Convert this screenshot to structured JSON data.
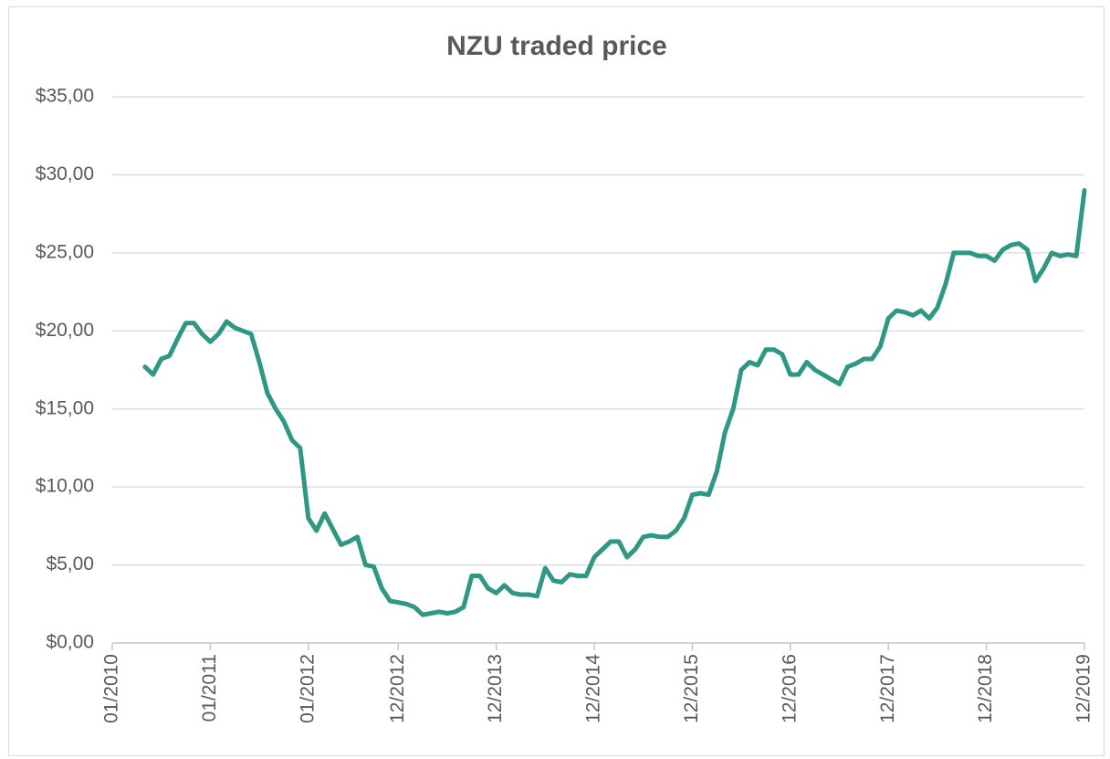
{
  "chart_data": {
    "type": "line",
    "title": "NZU traded price",
    "x": [
      "05/2010",
      "06/2010",
      "07/2010",
      "08/2010",
      "09/2010",
      "10/2010",
      "11/2010",
      "12/2010",
      "01/2011",
      "02/2011",
      "03/2011",
      "04/2011",
      "05/2011",
      "06/2011",
      "07/2011",
      "08/2011",
      "09/2011",
      "10/2011",
      "11/2011",
      "12/2011",
      "01/2012",
      "02/2012",
      "03/2012",
      "04/2012",
      "05/2012",
      "06/2012",
      "07/2012",
      "08/2012",
      "09/2012",
      "10/2012",
      "11/2012",
      "12/2012",
      "01/2013",
      "02/2013",
      "03/2013",
      "04/2013",
      "05/2013",
      "06/2013",
      "07/2013",
      "08/2013",
      "09/2013",
      "10/2013",
      "11/2013",
      "12/2013",
      "01/2014",
      "02/2014",
      "03/2014",
      "04/2014",
      "05/2014",
      "06/2014",
      "07/2014",
      "08/2014",
      "09/2014",
      "10/2014",
      "11/2014",
      "12/2014",
      "01/2015",
      "02/2015",
      "03/2015",
      "04/2015",
      "05/2015",
      "06/2015",
      "07/2015",
      "08/2015",
      "09/2015",
      "10/2015",
      "11/2015",
      "12/2015",
      "01/2016",
      "02/2016",
      "03/2016",
      "04/2016",
      "05/2016",
      "06/2016",
      "07/2016",
      "08/2016",
      "09/2016",
      "10/2016",
      "11/2016",
      "12/2016",
      "01/2017",
      "02/2017",
      "03/2017",
      "04/2017",
      "05/2017",
      "06/2017",
      "07/2017",
      "08/2017",
      "09/2017",
      "10/2017",
      "11/2017",
      "12/2017",
      "01/2018",
      "02/2018",
      "03/2018",
      "04/2018",
      "05/2018",
      "06/2018",
      "07/2018",
      "08/2018",
      "09/2018",
      "10/2018",
      "11/2018",
      "12/2018",
      "01/2019",
      "02/2019",
      "03/2019",
      "04/2019",
      "05/2019",
      "06/2019",
      "07/2019",
      "08/2019",
      "09/2019",
      "10/2019",
      "11/2019",
      "12/2019"
    ],
    "values": [
      17.7,
      17.2,
      18.2,
      18.4,
      19.5,
      20.5,
      20.5,
      19.8,
      19.3,
      19.8,
      20.6,
      20.2,
      20.0,
      19.8,
      18.0,
      16.0,
      15.0,
      14.2,
      13.0,
      12.5,
      8.0,
      7.2,
      8.3,
      7.3,
      6.3,
      6.5,
      6.8,
      5.0,
      4.9,
      3.5,
      2.7,
      2.6,
      2.5,
      2.3,
      1.8,
      1.9,
      2.0,
      1.9,
      2.0,
      2.3,
      4.3,
      4.3,
      3.5,
      3.2,
      3.7,
      3.2,
      3.1,
      3.1,
      3.0,
      4.8,
      4.0,
      3.9,
      4.4,
      4.3,
      4.3,
      5.5,
      6.0,
      6.5,
      6.5,
      5.5,
      6.0,
      6.8,
      6.9,
      6.8,
      6.8,
      7.2,
      8.0,
      9.5,
      9.6,
      9.5,
      11.0,
      13.5,
      15.0,
      17.5,
      18.0,
      17.8,
      18.8,
      18.8,
      18.5,
      17.2,
      17.2,
      18.0,
      17.5,
      17.2,
      16.9,
      16.6,
      17.7,
      17.9,
      18.2,
      18.2,
      19.0,
      20.8,
      21.3,
      21.2,
      21.0,
      21.3,
      20.8,
      21.5,
      23.0,
      25.0,
      25.0,
      25.0,
      24.8,
      24.8,
      24.5,
      25.2,
      25.5,
      25.6,
      25.2,
      23.2,
      24.0,
      25.0,
      24.8,
      24.9,
      24.8,
      29.0
    ],
    "color": "#2e9882",
    "xlim": [
      "01/2010",
      "12/2019"
    ],
    "xticks": [
      "01/2010",
      "01/2011",
      "01/2012",
      "12/2012",
      "12/2013",
      "12/2014",
      "12/2015",
      "12/2016",
      "12/2017",
      "12/2018",
      "12/2019"
    ],
    "ylim": [
      0,
      35
    ],
    "yticks": [
      {
        "value": 0,
        "label": "$0,00"
      },
      {
        "value": 5,
        "label": "$5,00"
      },
      {
        "value": 10,
        "label": "$10,00"
      },
      {
        "value": 15,
        "label": "$15,00"
      },
      {
        "value": 20,
        "label": "$20,00"
      },
      {
        "value": 25,
        "label": "$25,00"
      },
      {
        "value": 30,
        "label": "$30,00"
      },
      {
        "value": 35,
        "label": "$35,00"
      }
    ],
    "grid": true
  }
}
